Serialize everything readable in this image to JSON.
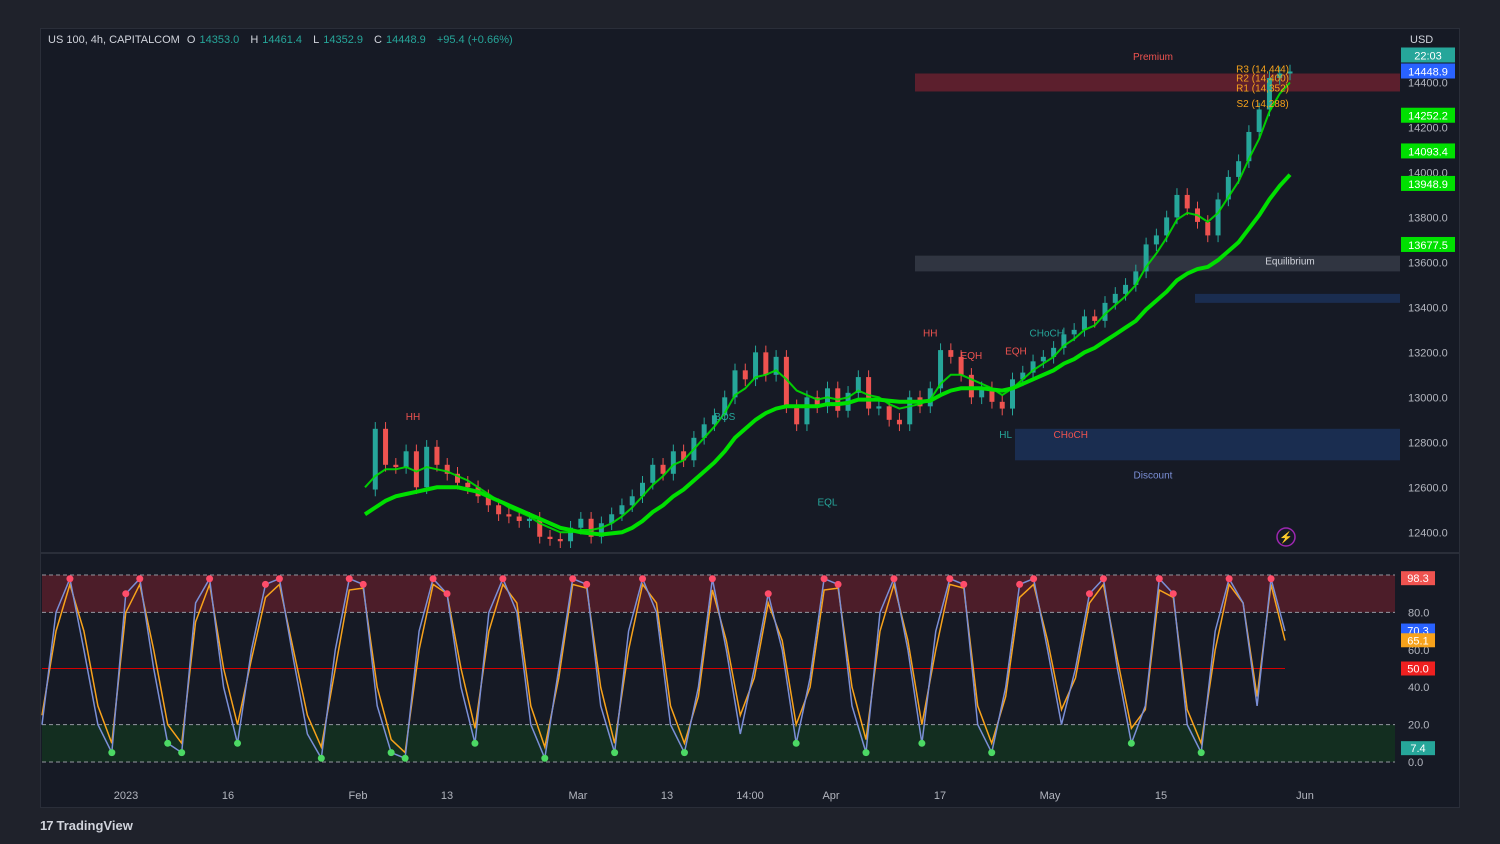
{
  "header": {
    "symbol": "US 100, 4h, CAPITALCOM",
    "open_label": "O",
    "open": "14353.0",
    "high_label": "H",
    "high": "14461.4",
    "low_label": "L",
    "low": "14352.9",
    "close_label": "C",
    "close": "14448.9",
    "change": "+95.4 (+0.66%)"
  },
  "currency": "USD",
  "brand": {
    "name": "TradingView",
    "logo": "17"
  },
  "colors": {
    "bull": "#26a69a",
    "bear": "#ef5350",
    "ema": "#00e000",
    "ema_bear": "#d50000",
    "premium_zone": "#7a2230",
    "discount_zone": "#1e3a6e",
    "equilibrium_zone": "#3a3f4b",
    "stoch_k": "#7b8fd6",
    "stoch_d": "#f7a21b",
    "ob_zone": "#5a1e2a",
    "os_zone": "#13331f"
  },
  "chart_data": [
    {
      "type": "line",
      "panel": "price",
      "y_axis_ticks": [
        "14400.0",
        "14200.0",
        "14000.0",
        "13800.0",
        "13600.0",
        "13400.0",
        "13200.0",
        "13000.0",
        "12800.0",
        "12600.0",
        "12400.0"
      ],
      "ylim": [
        12330,
        14500
      ],
      "price_labels": [
        {
          "text": "14448.9",
          "value": 14448.9,
          "color": "#2962ff"
        },
        {
          "text": "14252.2",
          "value": 14252.2,
          "color": "#00e000"
        },
        {
          "text": "14093.4",
          "value": 14093.4,
          "color": "#00e000"
        },
        {
          "text": "13948.9",
          "value": 13948.9,
          "color": "#00e000"
        },
        {
          "text": "13677.5",
          "value": 13677.5,
          "color": "#00e000"
        }
      ],
      "countdown_label": "22:03",
      "x_tick_labels": [
        "2023",
        "16",
        "Feb",
        "13",
        "Mar",
        "13",
        "14:00",
        "Apr",
        "17",
        "May",
        "15",
        "Jun"
      ],
      "x": [
        0,
        3,
        6,
        9,
        12,
        15,
        18,
        21,
        24,
        27,
        30,
        33,
        36,
        39,
        42,
        45,
        48,
        51,
        54,
        57,
        60,
        63,
        66,
        69,
        72,
        75,
        78,
        81,
        84,
        87,
        90,
        93,
        96,
        99,
        102,
        105,
        108,
        111,
        114,
        117,
        120,
        123,
        126,
        129,
        132,
        135,
        138,
        141,
        144,
        147,
        150,
        153,
        156,
        159,
        162,
        165,
        168,
        171,
        174,
        177,
        180,
        183,
        186,
        189,
        192,
        195,
        198,
        201,
        204,
        207,
        210,
        213,
        216,
        219,
        222,
        225,
        228,
        231,
        234,
        237,
        240,
        243,
        246,
        249,
        252,
        255,
        258,
        261,
        264,
        267,
        270
      ],
      "series": [
        {
          "key": "price",
          "values": [
            12590,
            12860,
            12700,
            12690,
            12760,
            12600,
            12780,
            12700,
            12660,
            12620,
            12600,
            12560,
            12520,
            12480,
            12470,
            12450,
            12460,
            12380,
            12370,
            12360,
            12420,
            12460,
            12380,
            12440,
            12480,
            12520,
            12560,
            12620,
            12700,
            12660,
            12760,
            12720,
            12820,
            12880,
            12920,
            13000,
            13120,
            13080,
            13200,
            13100,
            13180,
            12960,
            12880,
            13000,
            12960,
            13040,
            12940,
            13020,
            13090,
            12950,
            12960,
            12900,
            12880,
            13000,
            12960,
            13040,
            13210,
            13180,
            13100,
            13000,
            13040,
            12980,
            12950,
            13080,
            13110,
            13160,
            13180,
            13220,
            13280,
            13300,
            13360,
            13340,
            13420,
            13460,
            13500,
            13560,
            13680,
            13720,
            13800,
            13900,
            13840,
            13780,
            13720,
            13880,
            13980,
            14050,
            14180,
            14280,
            14420,
            14440,
            14449
          ]
        },
        {
          "key": "ema_fast",
          "values": [
            12600,
            12650,
            12680,
            12680,
            12690,
            12670,
            12690,
            12680,
            12670,
            12650,
            12630,
            12600,
            12570,
            12540,
            12510,
            12490,
            12470,
            12440,
            12420,
            12400,
            12400,
            12410,
            12410,
            12420,
            12440,
            12470,
            12510,
            12560,
            12610,
            12650,
            12700,
            12720,
            12770,
            12820,
            12870,
            12930,
            13010,
            13040,
            13090,
            13100,
            13120,
            13080,
            13030,
            13010,
            12990,
            13000,
            12990,
            13000,
            13030,
            13010,
            13000,
            12970,
            12950,
            12960,
            12970,
            12990,
            13060,
            13100,
            13100,
            13080,
            13060,
            13040,
            13010,
            13040,
            13080,
            13120,
            13150,
            13180,
            13230,
            13260,
            13300,
            13320,
            13370,
            13410,
            13450,
            13500,
            13580,
            13640,
            13710,
            13790,
            13820,
            13810,
            13780,
            13820,
            13890,
            13960,
            14060,
            14150,
            14270,
            14350,
            14400
          ]
        },
        {
          "key": "ema_slow",
          "values": [
            12480,
            12510,
            12540,
            12560,
            12570,
            12580,
            12590,
            12600,
            12600,
            12600,
            12590,
            12580,
            12560,
            12540,
            12520,
            12500,
            12480,
            12460,
            12440,
            12420,
            12410,
            12400,
            12395,
            12390,
            12395,
            12400,
            12420,
            12450,
            12490,
            12520,
            12560,
            12590,
            12630,
            12670,
            12710,
            12760,
            12820,
            12860,
            12900,
            12930,
            12950,
            12960,
            12960,
            12960,
            12960,
            12970,
            12970,
            12975,
            12990,
            12990,
            12990,
            12985,
            12980,
            12980,
            12980,
            12985,
            13010,
            13030,
            13040,
            13040,
            13040,
            13035,
            13030,
            13040,
            13060,
            13080,
            13100,
            13120,
            13150,
            13170,
            13200,
            13220,
            13250,
            13280,
            13310,
            13340,
            13390,
            13430,
            13470,
            13520,
            13550,
            13570,
            13580,
            13610,
            13650,
            13690,
            13750,
            13810,
            13880,
            13940,
            13990
          ]
        }
      ],
      "annotations": [
        {
          "text": "HH",
          "x": 14,
          "y": 12900,
          "color": "#ef5350"
        },
        {
          "text": "BOS",
          "x": 105,
          "y": 12900,
          "color": "#26a69a"
        },
        {
          "text": "HH",
          "x": 165,
          "y": 13270,
          "color": "#ef5350"
        },
        {
          "text": "CHoCH",
          "x": 199,
          "y": 13270,
          "color": "#26a69a"
        },
        {
          "text": "EQH",
          "x": 177,
          "y": 13170,
          "color": "#ef5350"
        },
        {
          "text": "EQH",
          "x": 190,
          "y": 13190,
          "color": "#ef5350"
        },
        {
          "text": "HL",
          "x": 187,
          "y": 12820,
          "color": "#26a69a"
        },
        {
          "text": "CHoCH",
          "x": 206,
          "y": 12820,
          "color": "#ef5350"
        },
        {
          "text": "EQL",
          "x": 135,
          "y": 12520,
          "color": "#26a69a"
        },
        {
          "text": "Premium",
          "x": 230,
          "y": 14530,
          "color": "#ef5350"
        },
        {
          "text": "Equilibrium",
          "x": 270,
          "y": 13590,
          "color": "#d1d4dc"
        },
        {
          "text": "Discount",
          "x": 230,
          "y": 12640,
          "color": "#7b8fd6"
        },
        {
          "text": "R3 (14,444)",
          "x": 262,
          "y": 14445,
          "color": "#f7a21b"
        },
        {
          "text": "R2 (14,400)",
          "x": 262,
          "y": 14405,
          "color": "#f7a21b"
        },
        {
          "text": "R1 (14,352)",
          "x": 262,
          "y": 14360,
          "color": "#f7a21b"
        },
        {
          "text": "S2 (14,288)",
          "x": 262,
          "y": 14290,
          "color": "#f7a21b"
        }
      ]
    },
    {
      "type": "line",
      "panel": "stochastic",
      "y_axis_ticks": [
        "80.0",
        "60.0",
        "40.0",
        "20.0",
        "0.0"
      ],
      "ylim": [
        0,
        100
      ],
      "levels": [
        {
          "text": "98.3",
          "value": 98.3,
          "color": "#ef5350"
        },
        {
          "text": "70.3",
          "value": 70.3,
          "color": "#2962ff"
        },
        {
          "text": "65.1",
          "value": 65.1,
          "color": "#f7a21b"
        },
        {
          "text": "50.0",
          "value": 50.0,
          "color": "#ef2020"
        },
        {
          "text": "7.4",
          "value": 7.4,
          "color": "#26a69a"
        }
      ],
      "series": [
        {
          "key": "k",
          "values": [
            20,
            80,
            98,
            60,
            20,
            5,
            90,
            98,
            50,
            10,
            5,
            85,
            98,
            40,
            10,
            60,
            95,
            98,
            55,
            15,
            2,
            60,
            98,
            95,
            30,
            5,
            2,
            70,
            98,
            90,
            40,
            10,
            80,
            98,
            80,
            20,
            2,
            50,
            98,
            95,
            30,
            5,
            70,
            98,
            80,
            20,
            5,
            40,
            98,
            60,
            15,
            50,
            90,
            60,
            10,
            45,
            98,
            95,
            30,
            5,
            80,
            98,
            60,
            10,
            70,
            98,
            95,
            20,
            5,
            40,
            95,
            98,
            60,
            20,
            50,
            90,
            98,
            50,
            10,
            30,
            98,
            90,
            20,
            5,
            70,
            98,
            85,
            30,
            98,
            70
          ]
        },
        {
          "key": "d",
          "values": [
            25,
            70,
            95,
            70,
            30,
            10,
            80,
            95,
            60,
            20,
            10,
            75,
            95,
            50,
            20,
            55,
            88,
            95,
            60,
            25,
            8,
            50,
            92,
            93,
            40,
            12,
            5,
            60,
            95,
            90,
            50,
            18,
            70,
            95,
            85,
            30,
            8,
            45,
            95,
            93,
            40,
            10,
            60,
            95,
            85,
            30,
            10,
            35,
            92,
            65,
            25,
            45,
            85,
            65,
            20,
            40,
            92,
            93,
            40,
            12,
            70,
            95,
            65,
            20,
            60,
            95,
            93,
            30,
            10,
            35,
            88,
            95,
            65,
            28,
            45,
            85,
            95,
            55,
            18,
            28,
            92,
            88,
            28,
            10,
            60,
            95,
            85,
            35,
            95,
            65
          ]
        }
      ]
    }
  ]
}
